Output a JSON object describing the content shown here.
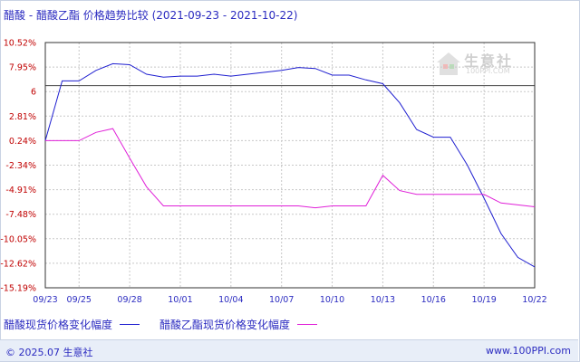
{
  "title": "醋酸 - 醋酸乙酯 价格趋势比较",
  "date_range": "(2021-09-23 - 2021-10-22)",
  "watermark": {
    "brand": "生意社",
    "url": "100PPI.COM"
  },
  "footer": {
    "copyright": "© 2025.07 生意社",
    "url": "www.100PPI.com"
  },
  "colors": {
    "series_1": "#1f1fd0",
    "series_2": "#e020d8",
    "axis_text": "#c00000",
    "grid": "#c8c8c8"
  },
  "chart_data": {
    "type": "line",
    "title": "醋酸 - 醋酸乙酯 价格趋势比较",
    "xlabel": "",
    "ylabel": "",
    "x_ticks": [
      "09/23",
      "09/25",
      "09/28",
      "10/01",
      "10/04",
      "10/07",
      "10/10",
      "10/13",
      "10/16",
      "10/19",
      "10/22"
    ],
    "y_ticks": [
      "10.52%",
      "7.95%",
      "6",
      "2.81%",
      "0.24%",
      "-2.34%",
      "-4.91%",
      "-7.48%",
      "-10.05%",
      "-12.62%",
      "-15.19%"
    ],
    "ylim": [
      -15.19,
      10.52
    ],
    "reference_line": 6,
    "x": [
      "09/23",
      "09/24",
      "09/25",
      "09/26",
      "09/27",
      "09/28",
      "09/29",
      "09/30",
      "10/01",
      "10/02",
      "10/03",
      "10/04",
      "10/05",
      "10/06",
      "10/07",
      "10/08",
      "10/09",
      "10/10",
      "10/11",
      "10/12",
      "10/13",
      "10/14",
      "10/15",
      "10/16",
      "10/17",
      "10/18",
      "10/19",
      "10/20",
      "10/21",
      "10/22"
    ],
    "series": [
      {
        "name": "醋酸现货价格变化幅度",
        "values": [
          0.24,
          6.5,
          6.5,
          7.6,
          8.3,
          8.2,
          7.2,
          6.9,
          7.0,
          7.0,
          7.2,
          7.0,
          7.2,
          7.4,
          7.6,
          7.9,
          7.8,
          7.1,
          7.1,
          6.6,
          6.2,
          4.2,
          1.4,
          0.6,
          0.6,
          -2.3,
          -5.8,
          -9.5,
          -12.0,
          -13.0
        ]
      },
      {
        "name": "醋酸乙酯现货价格变化幅度",
        "values": [
          0.24,
          0.24,
          0.24,
          1.1,
          1.5,
          -1.6,
          -4.6,
          -6.6,
          -6.6,
          -6.6,
          -6.6,
          -6.6,
          -6.6,
          -6.6,
          -6.6,
          -6.6,
          -6.8,
          -6.6,
          -6.6,
          -6.6,
          -3.4,
          -5.0,
          -5.4,
          -5.4,
          -5.4,
          -5.4,
          -5.4,
          -6.3,
          -6.5,
          -6.7
        ]
      }
    ],
    "legend_position": "bottom-left",
    "grid": true
  }
}
